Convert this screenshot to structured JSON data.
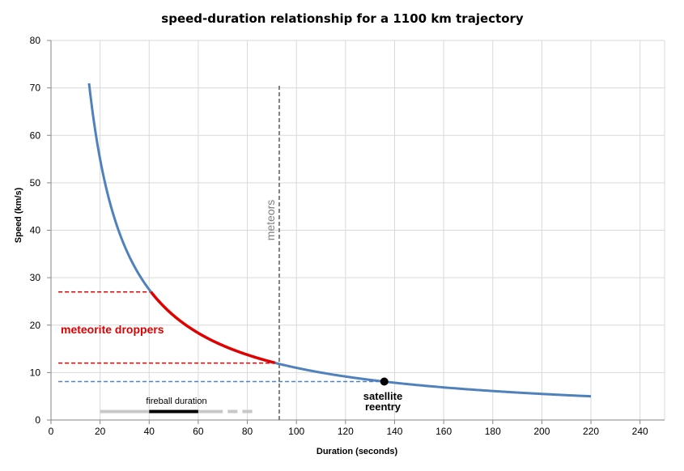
{
  "chart_data": {
    "type": "line",
    "title": "speed-duration relationship for a 1100 km trajectory",
    "xlabel": "Duration (seconds)",
    "ylabel": "Speed (km/s)",
    "xlim": [
      0,
      250
    ],
    "ylim": [
      0,
      80
    ],
    "xticks": [
      0,
      20,
      40,
      60,
      80,
      100,
      120,
      140,
      160,
      180,
      200,
      220,
      240
    ],
    "yticks": [
      0,
      10,
      20,
      30,
      40,
      50,
      60,
      70,
      80
    ],
    "grid": true,
    "trajectory_km": 1100,
    "series": [
      {
        "name": "speed-duration curve",
        "color": "#4f81bd",
        "x_start": 15.5,
        "x_end": 220
      },
      {
        "name": "meteorite droppers",
        "color": "#e00000",
        "y_range": [
          12,
          27
        ]
      }
    ],
    "reference_lines": [
      {
        "name": "meteorite-upper",
        "y": 27,
        "x_start": 3,
        "color": "#e00000"
      },
      {
        "name": "meteorite-lower",
        "y": 12,
        "x_start": 3,
        "color": "#e00000"
      },
      {
        "name": "satellite",
        "y": 8.1,
        "x_start": 3,
        "color": "#4f81bd"
      },
      {
        "name": "meteors",
        "x": 93,
        "y_max": 70.5,
        "color": "#595959"
      }
    ],
    "marker": {
      "name": "satellite reentry",
      "x": 135.8,
      "y": 8.1
    },
    "fireball_duration_bar": {
      "y": 1.8,
      "segments": [
        {
          "from": 20,
          "to": 40,
          "color": "#c8c8c8",
          "style": "solid"
        },
        {
          "from": 40,
          "to": 60,
          "color": "#000000",
          "style": "solid"
        },
        {
          "from": 60,
          "to": 70,
          "color": "#c8c8c8",
          "style": "solid"
        },
        {
          "from": 72,
          "to": 76,
          "color": "#c8c8c8",
          "style": "solid"
        },
        {
          "from": 78,
          "to": 82,
          "color": "#c8c8c8",
          "style": "solid"
        }
      ]
    },
    "annotations": {
      "meteorite_droppers": "meteorite droppers",
      "meteors": "meteors",
      "satellite_line1": "satellite",
      "satellite_line2": "reentry",
      "fireball_duration": "fireball duration"
    }
  }
}
